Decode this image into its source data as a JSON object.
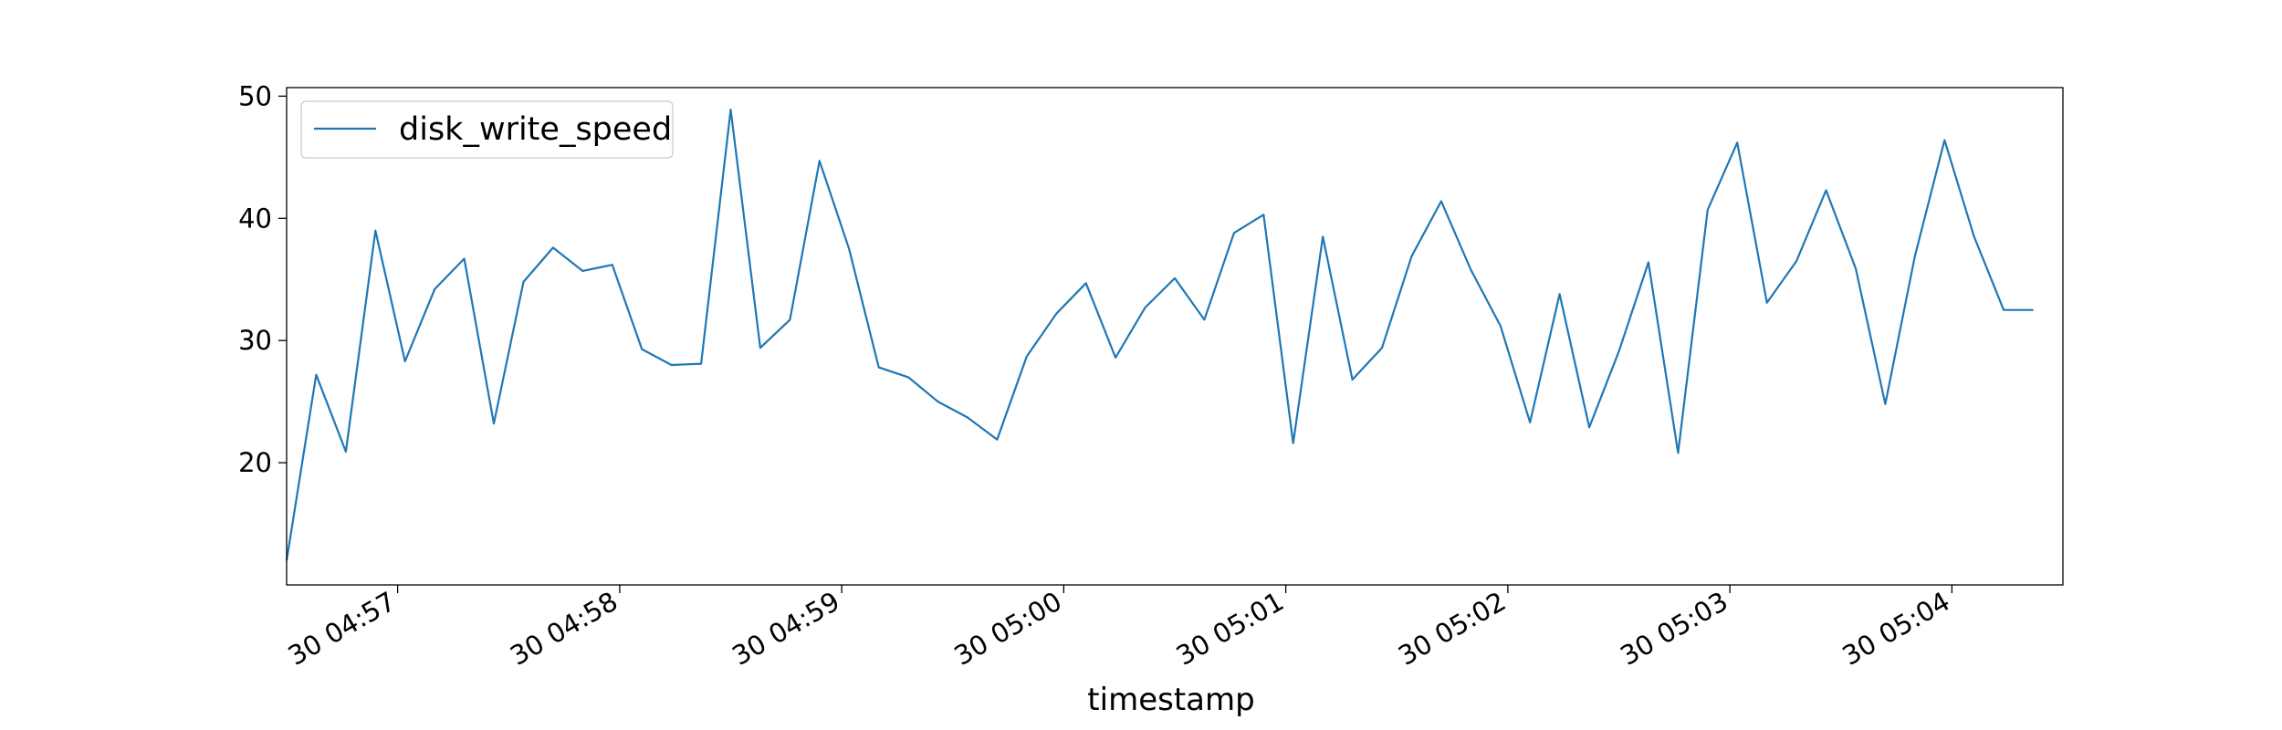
{
  "chart_data": {
    "type": "line",
    "title": "",
    "xlabel": "timestamp",
    "ylabel": "",
    "x": [
      "04:56:30",
      "04:56:38",
      "04:56:46",
      "04:56:54",
      "04:57:02",
      "04:57:10",
      "04:57:18",
      "04:57:26",
      "04:57:34",
      "04:57:42",
      "04:57:50",
      "04:57:58",
      "04:58:06",
      "04:58:14",
      "04:58:22",
      "04:58:30",
      "04:58:38",
      "04:58:46",
      "04:58:54",
      "04:59:02",
      "04:59:10",
      "04:59:18",
      "04:59:26",
      "04:59:34",
      "04:59:42",
      "04:59:50",
      "04:59:58",
      "05:00:06",
      "05:00:14",
      "05:00:22",
      "05:00:30",
      "05:00:38",
      "05:00:46",
      "05:00:54",
      "05:01:02",
      "05:01:10",
      "05:01:18",
      "05:01:26",
      "05:01:34",
      "05:01:42",
      "05:01:50",
      "05:01:58",
      "05:02:06",
      "05:02:14",
      "05:02:22",
      "05:02:30",
      "05:02:38",
      "05:02:46",
      "05:02:54",
      "05:03:02",
      "05:03:10",
      "05:03:18",
      "05:03:26",
      "05:03:34",
      "05:03:42",
      "05:03:50",
      "05:03:58",
      "05:04:06",
      "05:04:14",
      "05:04:22"
    ],
    "series": [
      {
        "name": "disk_write_speed",
        "color": "#1f77b4",
        "values": [
          12.0,
          27.2,
          20.9,
          39.0,
          28.3,
          34.2,
          36.7,
          23.2,
          34.8,
          37.6,
          35.7,
          36.2,
          29.3,
          28.0,
          28.1,
          48.9,
          29.4,
          31.7,
          44.7,
          37.5,
          27.8,
          27.0,
          25.0,
          23.7,
          21.9,
          28.7,
          32.2,
          34.7,
          28.6,
          32.7,
          35.1,
          31.7,
          38.8,
          40.3,
          21.6,
          38.5,
          26.8,
          29.4,
          36.9,
          41.4,
          35.8,
          31.2,
          23.3,
          33.8,
          22.9,
          29.1,
          36.4,
          20.8,
          40.7,
          46.2,
          33.1,
          36.5,
          42.3,
          35.9,
          24.8,
          36.9,
          46.4,
          38.5,
          32.5,
          32.5
        ]
      }
    ],
    "xtick_labels": [
      "30 04:57",
      "30 04:58",
      "30 04:59",
      "30 05:00",
      "30 05:01",
      "30 05:02",
      "30 05:03",
      "30 05:04"
    ],
    "xtick_values": [
      "04:57:00",
      "04:58:00",
      "04:59:00",
      "05:00:00",
      "05:01:00",
      "05:02:00",
      "05:03:00",
      "05:04:00"
    ],
    "xlim": [
      "04:56:30",
      "05:04:30"
    ],
    "ytick_values": [
      20,
      30,
      40,
      50
    ],
    "ylim": [
      10,
      50.7
    ],
    "grid": false,
    "legend": "upper-left"
  }
}
